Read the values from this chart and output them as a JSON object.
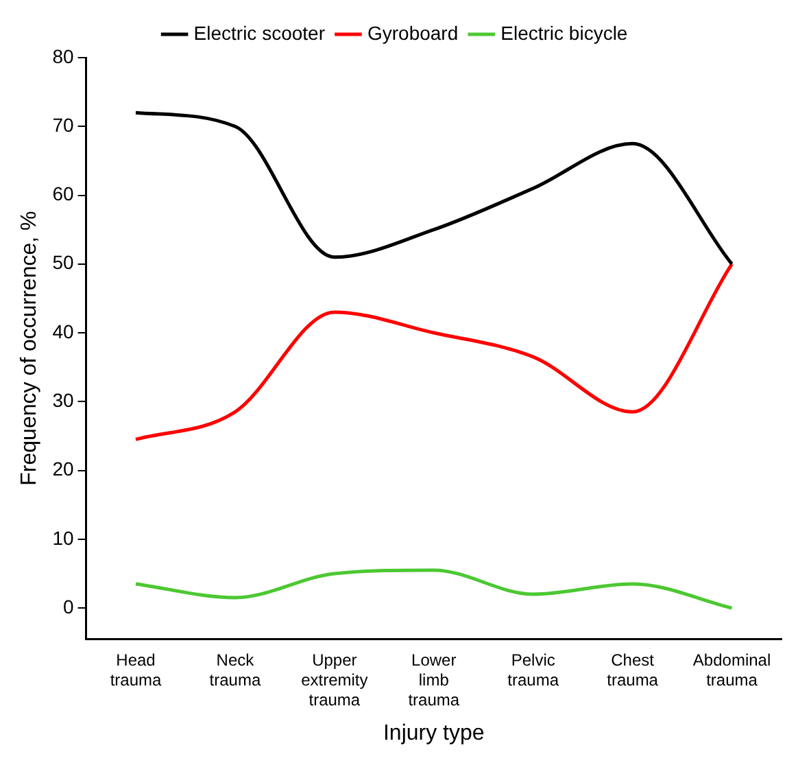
{
  "chart_data": {
    "type": "line",
    "xlabel": "Injury type",
    "ylabel": "Frequency of occurrence, %",
    "categories": [
      "Head trauma",
      "Neck trauma",
      "Upper extremity trauma",
      "Lower limb trauma",
      "Pelvic trauma",
      "Chest trauma",
      "Abdominal trauma"
    ],
    "series": [
      {
        "name": "Electric scooter",
        "color": "#000000",
        "values": [
          72,
          70,
          51,
          55,
          61,
          67.5,
          50
        ]
      },
      {
        "name": "Gyroboard",
        "color": "#ff0000",
        "values": [
          24.5,
          28.5,
          43,
          40,
          36.5,
          28.5,
          50
        ]
      },
      {
        "name": "Electric bicycle",
        "color": "#4cc832",
        "values": [
          3.5,
          1.5,
          5,
          5.5,
          2,
          3.5,
          0
        ]
      }
    ],
    "ylim": [
      -4.5,
      80
    ],
    "yticks": [
      0,
      10,
      20,
      30,
      40,
      50,
      60,
      70,
      80
    ],
    "grid": false,
    "legend": "top",
    "marker": "none",
    "line_style": "solid"
  }
}
